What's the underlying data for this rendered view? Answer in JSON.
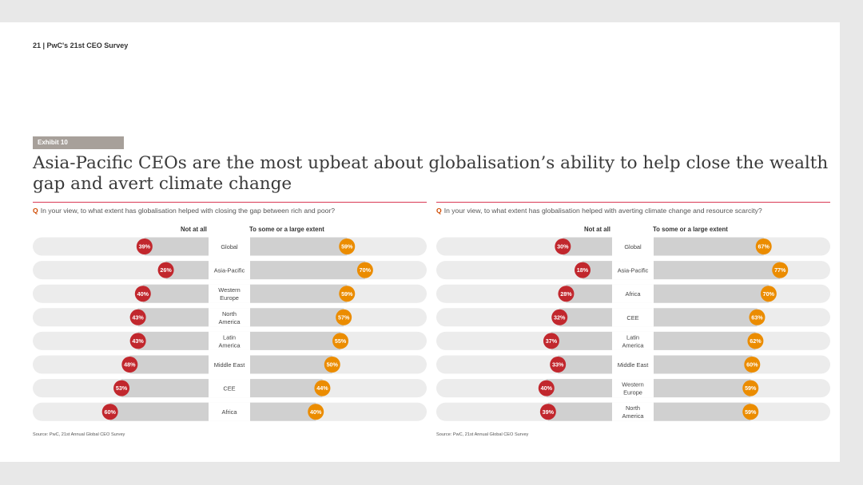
{
  "header": {
    "page_label": "21  |  PwC's 21st CEO Survey"
  },
  "exhibit": {
    "label": "Exhibit 10"
  },
  "title": "Asia-Pacific CEOs are the most upbeat about globalisation’s ability to help close the wealth gap and avert climate change",
  "colors": {
    "not_at_all": "#c1272d",
    "large_extent": "#eb8c00",
    "bar": "#d0d0d0",
    "track": "#ececec",
    "rule": "#d93954"
  },
  "chart_data": [
    {
      "type": "bar",
      "question_marker": "Q",
      "question": "In your view, to what extent has globalisation helped with closing the gap between rich and poor?",
      "left_label": "Not at all",
      "right_label": "To some or a large extent",
      "categories": [
        "Global",
        "Asia-Pacific",
        "Western Europe",
        "North America",
        "Latin America",
        "Middle East",
        "CEE",
        "Africa"
      ],
      "series": [
        {
          "name": "Not at all",
          "values": [
            39,
            26,
            40,
            43,
            43,
            48,
            53,
            60
          ]
        },
        {
          "name": "To some or a large extent",
          "values": [
            59,
            70,
            59,
            57,
            55,
            50,
            44,
            40
          ]
        }
      ],
      "source": "Source: PwC, 21st Annual Global CEO Survey"
    },
    {
      "type": "bar",
      "question_marker": "Q",
      "question": "In your view, to what extent has globalisation helped with averting climate change and resource scarcity?",
      "left_label": "Not at all",
      "right_label": "To some or a large extent",
      "categories": [
        "Global",
        "Asia-Pacific",
        "Africa",
        "CEE",
        "Latin America",
        "Middle East",
        "Western Europe",
        "North America"
      ],
      "series": [
        {
          "name": "Not at all",
          "values": [
            30,
            18,
            28,
            32,
            37,
            33,
            40,
            39
          ]
        },
        {
          "name": "To some or a large extent",
          "values": [
            67,
            77,
            70,
            63,
            62,
            60,
            59,
            59
          ]
        }
      ],
      "source": "Source: PwC, 21st Annual Global CEO Survey"
    }
  ]
}
